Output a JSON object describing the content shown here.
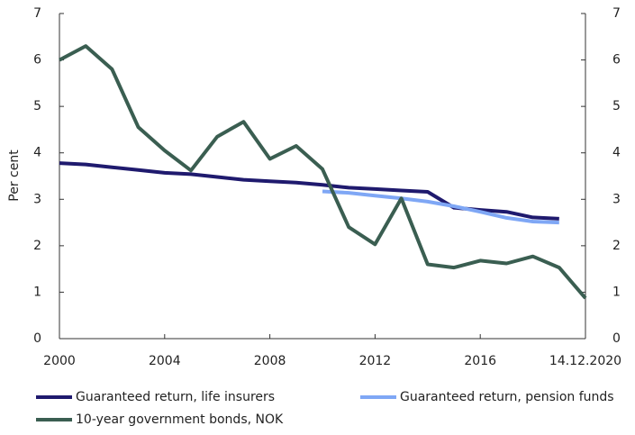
{
  "chart_data": {
    "type": "line",
    "y_label": "Per cent",
    "x": [
      2000,
      2001,
      2002,
      2003,
      2004,
      2005,
      2006,
      2007,
      2008,
      2009,
      2010,
      2011,
      2012,
      2013,
      2014,
      2015,
      2016,
      2017,
      2018,
      2019,
      2020
    ],
    "series": [
      {
        "name": "Guaranteed return, life insurers",
        "color": "#1f1a6e",
        "values": [
          3.78,
          3.75,
          3.69,
          3.63,
          3.57,
          3.54,
          3.48,
          3.42,
          3.39,
          3.36,
          3.31,
          3.25,
          3.22,
          3.19,
          3.16,
          2.82,
          2.77,
          2.73,
          2.61,
          2.58,
          null
        ]
      },
      {
        "name": "Guaranteed return, pension funds",
        "color": "#7fa7f5",
        "values": [
          null,
          null,
          null,
          null,
          null,
          null,
          null,
          null,
          null,
          null,
          3.17,
          3.14,
          3.08,
          3.02,
          2.95,
          2.85,
          2.73,
          2.6,
          2.52,
          2.5,
          null
        ]
      },
      {
        "name": "10-year government bonds, NOK",
        "color": "#3a5e51",
        "values": [
          6.0,
          6.3,
          5.8,
          4.55,
          4.05,
          3.62,
          4.35,
          4.67,
          3.87,
          4.15,
          3.65,
          2.4,
          2.03,
          3.02,
          1.6,
          1.53,
          1.68,
          1.62,
          1.77,
          1.53,
          0.87
        ]
      }
    ],
    "xlim": [
      2000,
      2020
    ],
    "xticks": [
      2000,
      2004,
      2008,
      2012,
      2016,
      {
        "value": 2020,
        "label": "14.12.2020"
      }
    ],
    "ylim": [
      0,
      7
    ],
    "yticks": [
      0,
      1,
      2,
      3,
      4,
      5,
      6,
      7
    ],
    "y2lim": [
      0,
      7
    ],
    "y2ticks": [
      0,
      1,
      2,
      3,
      4,
      5,
      6,
      7
    ],
    "grid": false
  }
}
